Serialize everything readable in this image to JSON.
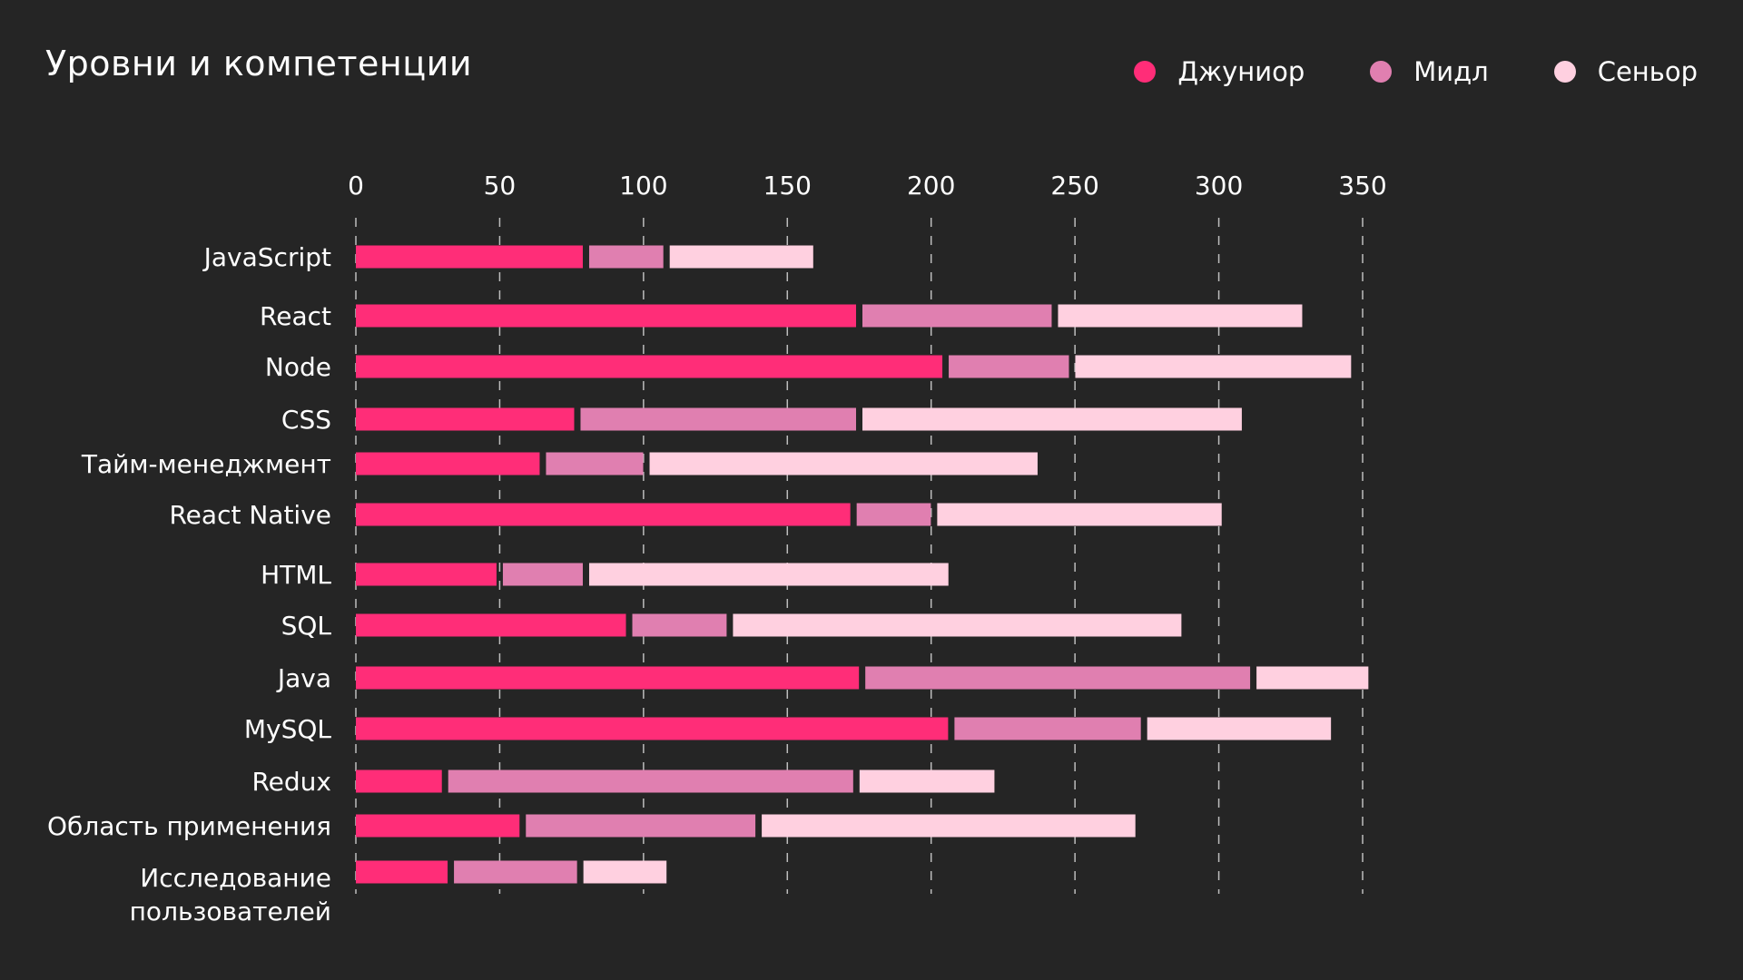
{
  "chart_data": {
    "type": "bar",
    "orientation": "horizontal",
    "stacked": true,
    "title": "Уровни и компетенции",
    "xlabel": "",
    "ylabel": "",
    "xlim": [
      0,
      350
    ],
    "xticks": [
      "0",
      "50",
      "100",
      "150",
      "200",
      "250",
      "300",
      "350"
    ],
    "grid": "vertical dashed",
    "legend_position": "top-right",
    "categories": [
      "JavaScript",
      "React",
      "Node",
      "CSS",
      "Тайм-менеджмент",
      "React Native",
      "HTML",
      "SQL",
      "Java",
      "MySQL",
      "Redux",
      "Область применения",
      "Исследование пользователей"
    ],
    "series": [
      {
        "name": "Джуниор",
        "color": "#ff2d78",
        "values": [
          80,
          175,
          205,
          77,
          65,
          173,
          50,
          95,
          176,
          207,
          31,
          58,
          33
        ]
      },
      {
        "name": "Мидл",
        "color": "#e07fb0",
        "values": [
          28,
          68,
          44,
          98,
          36,
          28,
          30,
          35,
          136,
          67,
          143,
          82,
          45
        ]
      },
      {
        "name": "Сеньор",
        "color": "#ffd0e0",
        "values": [
          51,
          86,
          97,
          133,
          136,
          100,
          126,
          157,
          40,
          65,
          48,
          131,
          30
        ]
      }
    ]
  }
}
